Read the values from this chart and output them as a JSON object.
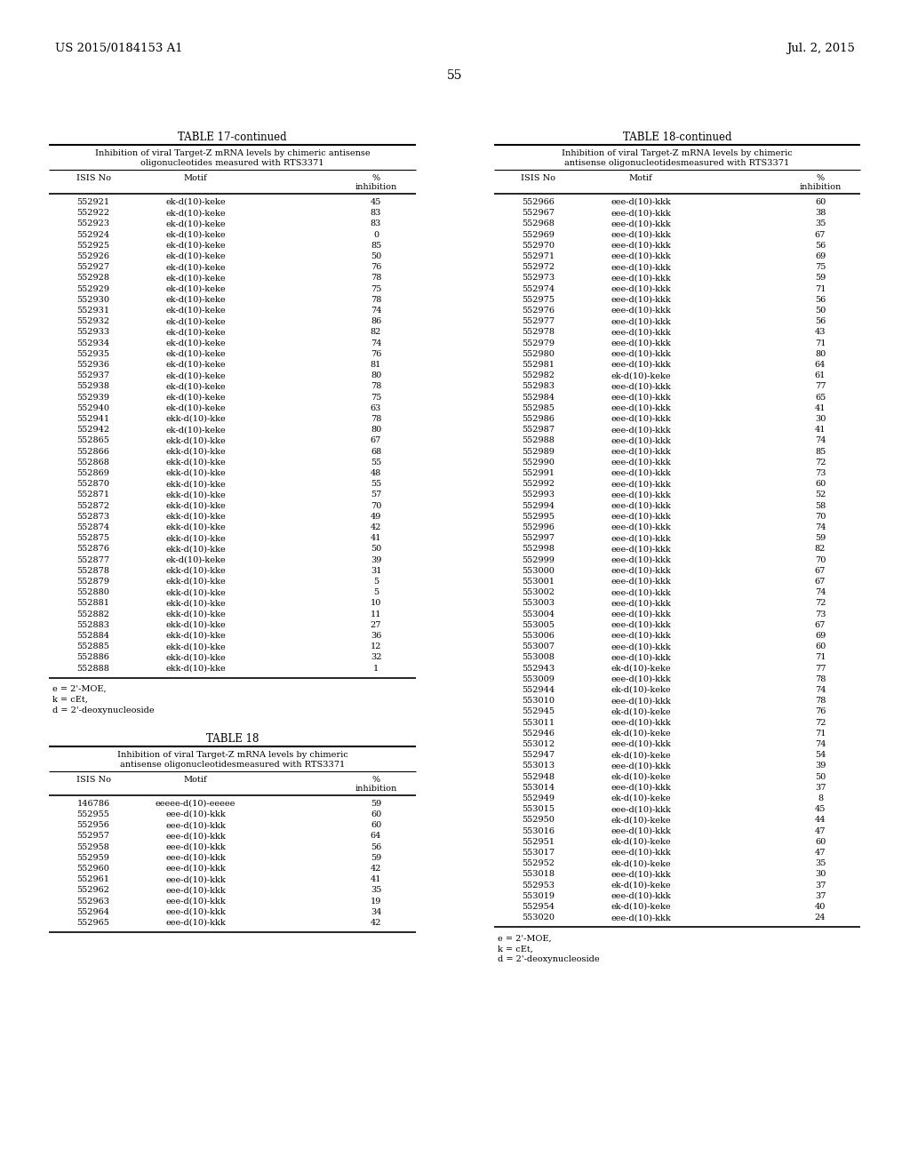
{
  "header_left": "US 2015/0184153 A1",
  "header_right": "Jul. 2, 2015",
  "page_number": "55",
  "table17_title": "TABLE 17-continued",
  "table17_subtitle": "Inhibition of viral Target-Z mRNA levels by chimeric antisense\noligonucleotides measured with RTS3371",
  "table17_cols": [
    "ISIS No",
    "Motif",
    "%\ninhibition"
  ],
  "table17_data": [
    [
      "552921",
      "ek-d(10)-keke",
      "45"
    ],
    [
      "552922",
      "ek-d(10)-keke",
      "83"
    ],
    [
      "552923",
      "ek-d(10)-keke",
      "83"
    ],
    [
      "552924",
      "ek-d(10)-keke",
      "0"
    ],
    [
      "552925",
      "ek-d(10)-keke",
      "85"
    ],
    [
      "552926",
      "ek-d(10)-keke",
      "50"
    ],
    [
      "552927",
      "ek-d(10)-keke",
      "76"
    ],
    [
      "552928",
      "ek-d(10)-keke",
      "78"
    ],
    [
      "552929",
      "ek-d(10)-keke",
      "75"
    ],
    [
      "552930",
      "ek-d(10)-keke",
      "78"
    ],
    [
      "552931",
      "ek-d(10)-keke",
      "74"
    ],
    [
      "552932",
      "ek-d(10)-keke",
      "86"
    ],
    [
      "552933",
      "ek-d(10)-keke",
      "82"
    ],
    [
      "552934",
      "ek-d(10)-keke",
      "74"
    ],
    [
      "552935",
      "ek-d(10)-keke",
      "76"
    ],
    [
      "552936",
      "ek-d(10)-keke",
      "81"
    ],
    [
      "552937",
      "ek-d(10)-keke",
      "80"
    ],
    [
      "552938",
      "ek-d(10)-keke",
      "78"
    ],
    [
      "552939",
      "ek-d(10)-keke",
      "75"
    ],
    [
      "552940",
      "ek-d(10)-keke",
      "63"
    ],
    [
      "552941",
      "ekk-d(10)-kke",
      "78"
    ],
    [
      "552942",
      "ek-d(10)-keke",
      "80"
    ],
    [
      "552865",
      "ekk-d(10)-kke",
      "67"
    ],
    [
      "552866",
      "ekk-d(10)-kke",
      "68"
    ],
    [
      "552868",
      "ekk-d(10)-kke",
      "55"
    ],
    [
      "552869",
      "ekk-d(10)-kke",
      "48"
    ],
    [
      "552870",
      "ekk-d(10)-kke",
      "55"
    ],
    [
      "552871",
      "ekk-d(10)-kke",
      "57"
    ],
    [
      "552872",
      "ekk-d(10)-kke",
      "70"
    ],
    [
      "552873",
      "ekk-d(10)-kke",
      "49"
    ],
    [
      "552874",
      "ekk-d(10)-kke",
      "42"
    ],
    [
      "552875",
      "ekk-d(10)-kke",
      "41"
    ],
    [
      "552876",
      "ekk-d(10)-kke",
      "50"
    ],
    [
      "552877",
      "ek-d(10)-keke",
      "39"
    ],
    [
      "552878",
      "ekk-d(10)-kke",
      "31"
    ],
    [
      "552879",
      "ekk-d(10)-kke",
      "5"
    ],
    [
      "552880",
      "ekk-d(10)-kke",
      "5"
    ],
    [
      "552881",
      "ekk-d(10)-kke",
      "10"
    ],
    [
      "552882",
      "ekk-d(10)-kke",
      "11"
    ],
    [
      "552883",
      "ekk-d(10)-kke",
      "27"
    ],
    [
      "552884",
      "ekk-d(10)-kke",
      "36"
    ],
    [
      "552885",
      "ekk-d(10)-kke",
      "12"
    ],
    [
      "552886",
      "ekk-d(10)-kke",
      "32"
    ],
    [
      "552888",
      "ekk-d(10)-kke",
      "1"
    ]
  ],
  "table17_footnotes": [
    "e = 2'-MOE,",
    "k = cEt,",
    "d = 2'-deoxynucleoside"
  ],
  "table18_title": "TABLE 18",
  "table18_subtitle": "Inhibition of viral Target-Z mRNA levels by chimeric\nantisense oligonucleotidesmeasured with RTS3371",
  "table18_cols": [
    "ISIS No",
    "Motif",
    "%\ninhibition"
  ],
  "table18_data": [
    [
      "146786",
      "eeeee-d(10)-eeeee",
      "59"
    ],
    [
      "552955",
      "eee-d(10)-kkk",
      "60"
    ],
    [
      "552956",
      "eee-d(10)-kkk",
      "60"
    ],
    [
      "552957",
      "eee-d(10)-kkk",
      "64"
    ],
    [
      "552958",
      "eee-d(10)-kkk",
      "56"
    ],
    [
      "552959",
      "eee-d(10)-kkk",
      "59"
    ],
    [
      "552960",
      "eee-d(10)-kkk",
      "42"
    ],
    [
      "552961",
      "eee-d(10)-kkk",
      "41"
    ],
    [
      "552962",
      "eee-d(10)-kkk",
      "35"
    ],
    [
      "552963",
      "eee-d(10)-kkk",
      "19"
    ],
    [
      "552964",
      "eee-d(10)-kkk",
      "34"
    ],
    [
      "552965",
      "eee-d(10)-kkk",
      "42"
    ]
  ],
  "table18c_title": "TABLE 18-continued",
  "table18c_subtitle": "Inhibition of viral Target-Z mRNA levels by chimeric\nantisense oligonucleotidesmeasured with RTS3371",
  "table18c_cols": [
    "ISIS No",
    "Motif",
    "%\ninhibition"
  ],
  "table18c_data": [
    [
      "552966",
      "eee-d(10)-kkk",
      "60"
    ],
    [
      "552967",
      "eee-d(10)-kkk",
      "38"
    ],
    [
      "552968",
      "eee-d(10)-kkk",
      "35"
    ],
    [
      "552969",
      "eee-d(10)-kkk",
      "67"
    ],
    [
      "552970",
      "eee-d(10)-kkk",
      "56"
    ],
    [
      "552971",
      "eee-d(10)-kkk",
      "69"
    ],
    [
      "552972",
      "eee-d(10)-kkk",
      "75"
    ],
    [
      "552973",
      "eee-d(10)-kkk",
      "59"
    ],
    [
      "552974",
      "eee-d(10)-kkk",
      "71"
    ],
    [
      "552975",
      "eee-d(10)-kkk",
      "56"
    ],
    [
      "552976",
      "eee-d(10)-kkk",
      "50"
    ],
    [
      "552977",
      "eee-d(10)-kkk",
      "56"
    ],
    [
      "552978",
      "eee-d(10)-kkk",
      "43"
    ],
    [
      "552979",
      "eee-d(10)-kkk",
      "71"
    ],
    [
      "552980",
      "eee-d(10)-kkk",
      "80"
    ],
    [
      "552981",
      "eee-d(10)-kkk",
      "64"
    ],
    [
      "552982",
      "ek-d(10)-keke",
      "61"
    ],
    [
      "552983",
      "eee-d(10)-kkk",
      "77"
    ],
    [
      "552984",
      "eee-d(10)-kkk",
      "65"
    ],
    [
      "552985",
      "eee-d(10)-kkk",
      "41"
    ],
    [
      "552986",
      "eee-d(10)-kkk",
      "30"
    ],
    [
      "552987",
      "eee-d(10)-kkk",
      "41"
    ],
    [
      "552988",
      "eee-d(10)-kkk",
      "74"
    ],
    [
      "552989",
      "eee-d(10)-kkk",
      "85"
    ],
    [
      "552990",
      "eee-d(10)-kkk",
      "72"
    ],
    [
      "552991",
      "eee-d(10)-kkk",
      "73"
    ],
    [
      "552992",
      "eee-d(10)-kkk",
      "60"
    ],
    [
      "552993",
      "eee-d(10)-kkk",
      "52"
    ],
    [
      "552994",
      "eee-d(10)-kkk",
      "58"
    ],
    [
      "552995",
      "eee-d(10)-kkk",
      "70"
    ],
    [
      "552996",
      "eee-d(10)-kkk",
      "74"
    ],
    [
      "552997",
      "eee-d(10)-kkk",
      "59"
    ],
    [
      "552998",
      "eee-d(10)-kkk",
      "82"
    ],
    [
      "552999",
      "eee-d(10)-kkk",
      "70"
    ],
    [
      "553000",
      "eee-d(10)-kkk",
      "67"
    ],
    [
      "553001",
      "eee-d(10)-kkk",
      "67"
    ],
    [
      "553002",
      "eee-d(10)-kkk",
      "74"
    ],
    [
      "553003",
      "eee-d(10)-kkk",
      "72"
    ],
    [
      "553004",
      "eee-d(10)-kkk",
      "73"
    ],
    [
      "553005",
      "eee-d(10)-kkk",
      "67"
    ],
    [
      "553006",
      "eee-d(10)-kkk",
      "69"
    ],
    [
      "553007",
      "eee-d(10)-kkk",
      "60"
    ],
    [
      "553008",
      "eee-d(10)-kkk",
      "71"
    ],
    [
      "552943",
      "ek-d(10)-keke",
      "77"
    ],
    [
      "553009",
      "eee-d(10)-kkk",
      "78"
    ],
    [
      "552944",
      "ek-d(10)-keke",
      "74"
    ],
    [
      "553010",
      "eee-d(10)-kkk",
      "78"
    ],
    [
      "552945",
      "ek-d(10)-keke",
      "76"
    ],
    [
      "553011",
      "eee-d(10)-kkk",
      "72"
    ],
    [
      "552946",
      "ek-d(10)-keke",
      "71"
    ],
    [
      "553012",
      "eee-d(10)-kkk",
      "74"
    ],
    [
      "552947",
      "ek-d(10)-keke",
      "54"
    ],
    [
      "553013",
      "eee-d(10)-kkk",
      "39"
    ],
    [
      "552948",
      "ek-d(10)-keke",
      "50"
    ],
    [
      "553014",
      "eee-d(10)-kkk",
      "37"
    ],
    [
      "552949",
      "ek-d(10)-keke",
      "8"
    ],
    [
      "553015",
      "eee-d(10)-kkk",
      "45"
    ],
    [
      "552950",
      "ek-d(10)-keke",
      "44"
    ],
    [
      "553016",
      "eee-d(10)-kkk",
      "47"
    ],
    [
      "552951",
      "ek-d(10)-keke",
      "60"
    ],
    [
      "553017",
      "eee-d(10)-kkk",
      "47"
    ],
    [
      "552952",
      "ek-d(10)-keke",
      "35"
    ],
    [
      "553018",
      "eee-d(10)-kkk",
      "30"
    ],
    [
      "552953",
      "ek-d(10)-keke",
      "37"
    ],
    [
      "553019",
      "eee-d(10)-kkk",
      "37"
    ],
    [
      "552954",
      "ek-d(10)-keke",
      "40"
    ],
    [
      "553020",
      "eee-d(10)-kkk",
      "24"
    ]
  ],
  "table18c_footnotes": [
    "e = 2'-MOE,",
    "k = cEt,",
    "d = 2'-deoxynucleoside"
  ]
}
